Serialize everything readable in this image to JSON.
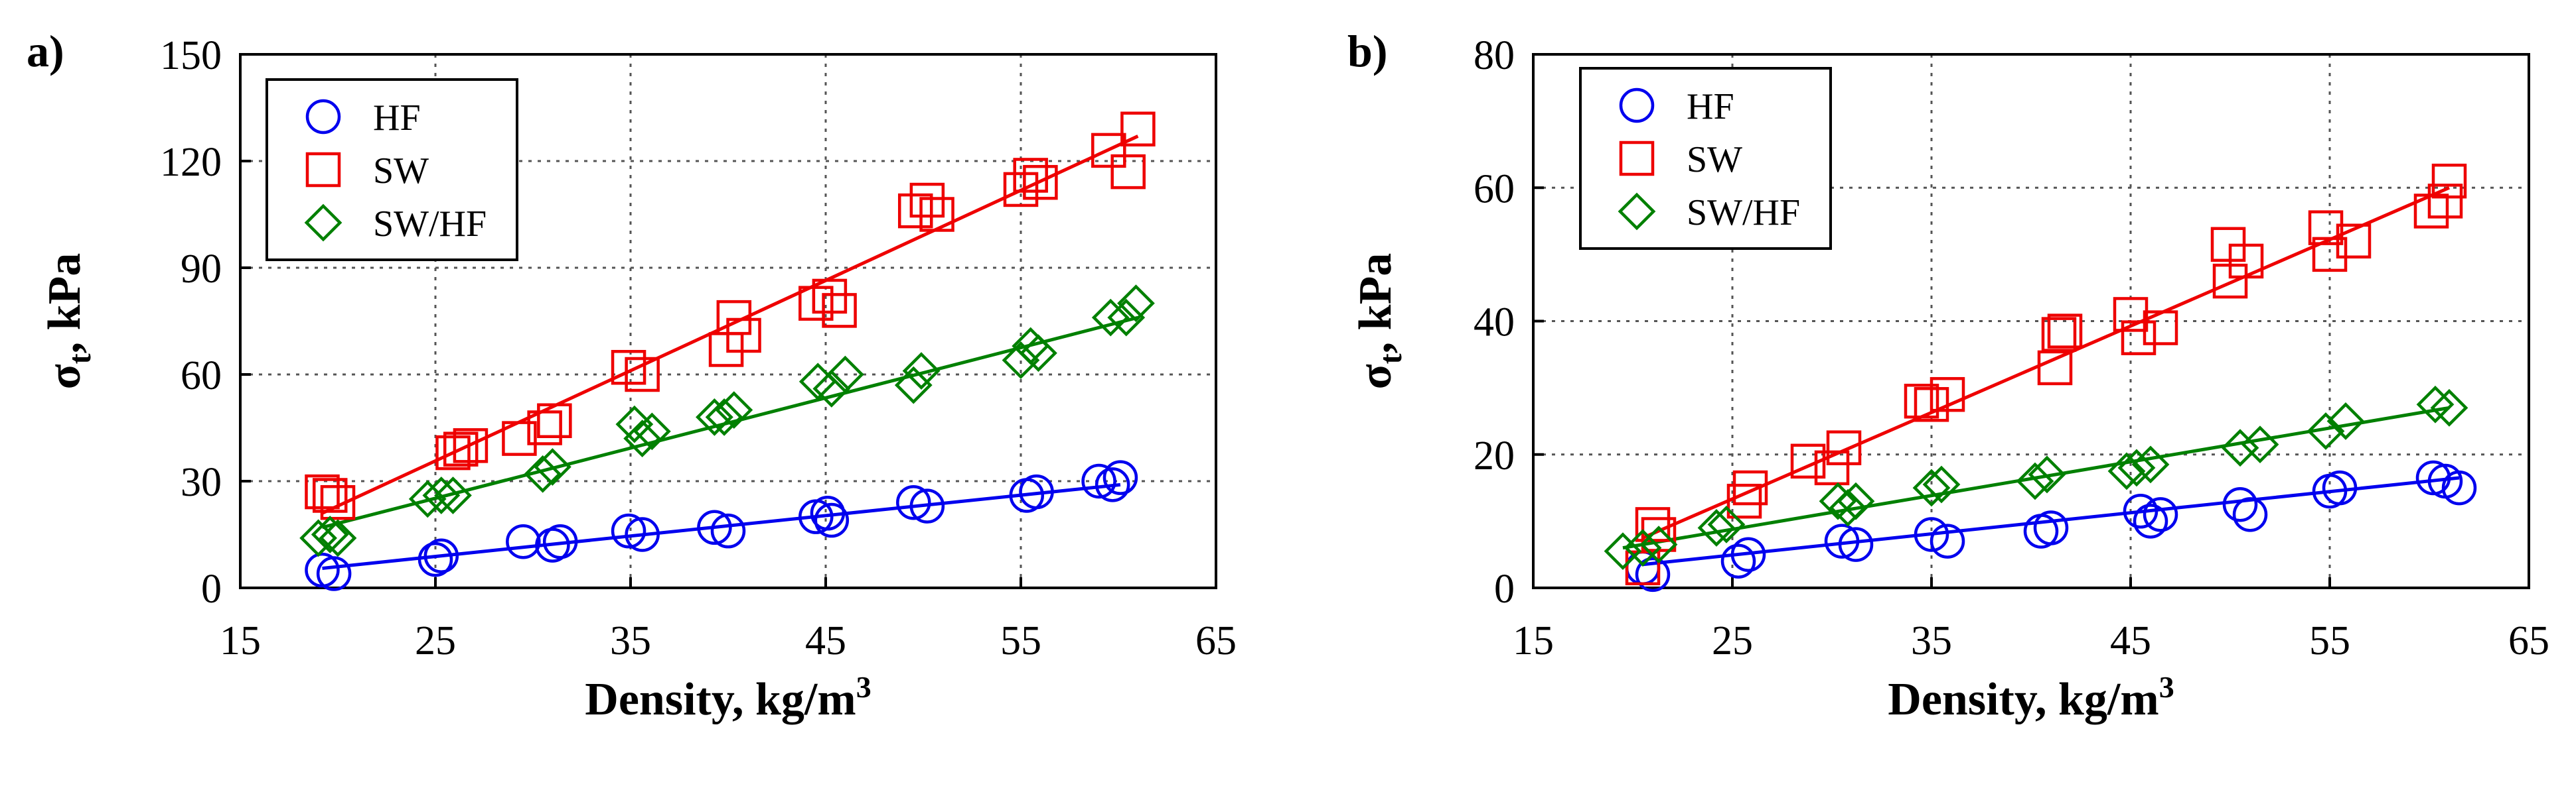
{
  "chart_data": [
    {
      "type": "scatter",
      "panel_label": "a)",
      "title": "",
      "xlabel": "Density, kg/m",
      "xlabel_superscript": "3",
      "ylabel": "σ",
      "ylabel_subscript": "t",
      "ylabel_suffix": ", kPa",
      "xlim": [
        15,
        65
      ],
      "ylim": [
        0,
        150
      ],
      "xticks": [
        15,
        25,
        35,
        45,
        55,
        65
      ],
      "yticks": [
        0,
        30,
        60,
        90,
        120,
        150
      ],
      "grid": true,
      "legend_position": "top-left",
      "series": [
        {
          "name": "HF",
          "marker": "circle",
          "color": "#0000ee",
          "x": [
            19.2,
            19.8,
            25.0,
            25.3,
            29.5,
            31.0,
            31.4,
            34.9,
            35.6,
            39.3,
            40.0,
            44.5,
            45.1,
            45.3,
            49.5,
            50.2,
            55.3,
            55.8,
            59.0,
            59.7,
            60.1
          ],
          "y": [
            5,
            4,
            8,
            9,
            13,
            12,
            13,
            16,
            15,
            17,
            16,
            20,
            21,
            19,
            24,
            23,
            26,
            27,
            30,
            29,
            31
          ],
          "fit": [
            [
              19.2,
              5.5
            ],
            [
              60.1,
              29
            ]
          ]
        },
        {
          "name": "SW",
          "marker": "square",
          "color": "#ee0000",
          "x": [
            19.2,
            19.6,
            20.0,
            25.9,
            26.3,
            26.8,
            29.3,
            30.6,
            31.1,
            34.9,
            35.6,
            39.9,
            40.3,
            40.8,
            44.5,
            45.2,
            45.7,
            49.6,
            50.2,
            50.7,
            55.0,
            55.5,
            56.0,
            59.5,
            60.5,
            61.0
          ],
          "y": [
            27,
            26,
            24,
            38,
            39,
            40,
            42,
            45,
            47,
            62,
            60,
            67,
            76,
            71,
            80,
            82,
            78,
            106,
            109,
            105,
            112,
            116,
            114,
            123,
            117,
            129
          ],
          "fit": [
            [
              19.2,
              21
            ],
            [
              61.0,
              127
            ]
          ]
        },
        {
          "name": "SW/HF",
          "marker": "diamond",
          "color": "#008000",
          "x": [
            19.0,
            19.6,
            20.0,
            24.6,
            25.3,
            25.9,
            30.5,
            31.0,
            35.2,
            35.6,
            36.1,
            39.3,
            39.8,
            40.3,
            44.6,
            45.3,
            46.0,
            49.5,
            49.9,
            55.0,
            55.5,
            55.9,
            59.6,
            60.4,
            60.9
          ],
          "y": [
            14,
            15,
            14,
            25,
            26,
            26,
            32,
            34,
            46,
            42,
            44,
            48,
            48,
            50,
            58,
            56,
            60,
            57,
            61,
            64,
            68,
            66,
            76,
            76,
            80
          ],
          "fit": [
            [
              19.2,
              17
            ],
            [
              61.0,
              76
            ]
          ]
        }
      ]
    },
    {
      "type": "scatter",
      "panel_label": "b)",
      "title": "",
      "xlabel": "Density, kg/m",
      "xlabel_superscript": "3",
      "ylabel": "σ",
      "ylabel_subscript": "t",
      "ylabel_suffix": ", kPa",
      "xlim": [
        15,
        65
      ],
      "ylim": [
        0,
        80
      ],
      "xticks": [
        15,
        25,
        35,
        45,
        55,
        65
      ],
      "yticks": [
        0,
        20,
        40,
        60,
        80
      ],
      "grid": true,
      "legend_position": "top-left",
      "series": [
        {
          "name": "HF",
          "marker": "circle",
          "color": "#0000ee",
          "x": [
            20.5,
            21.0,
            25.3,
            25.8,
            30.5,
            31.2,
            35.0,
            35.8,
            40.5,
            41.0,
            45.5,
            46.0,
            46.5,
            50.5,
            51.0,
            55.0,
            55.5,
            60.2,
            60.8,
            61.5
          ],
          "y": [
            3,
            2,
            4,
            5,
            7,
            6.5,
            8,
            7,
            8.5,
            9,
            11.5,
            10,
            11,
            12.5,
            11,
            14.5,
            15,
            16.5,
            16,
            15
          ],
          "fit": [
            [
              20.5,
              3.5
            ],
            [
              61.5,
              16.5
            ]
          ]
        },
        {
          "name": "SW",
          "marker": "square",
          "color": "#ee0000",
          "x": [
            20.5,
            21.0,
            21.3,
            25.6,
            25.9,
            28.8,
            30.0,
            30.6,
            34.5,
            35.0,
            35.8,
            41.2,
            41.4,
            41.7,
            45.0,
            45.4,
            46.5,
            49.9,
            50.0,
            50.8,
            54.8,
            55.0,
            56.2,
            60.1,
            60.8,
            61.0
          ],
          "y": [
            3,
            9.5,
            8,
            13,
            15,
            19,
            18,
            21,
            28,
            27.5,
            29,
            33,
            38,
            38.5,
            41,
            37.5,
            39,
            51.5,
            46,
            49,
            54,
            50,
            52,
            56.5,
            58,
            61
          ],
          "fit": [
            [
              20.5,
              7.5
            ],
            [
              61.0,
              60
            ]
          ]
        },
        {
          "name": "SW/HF",
          "marker": "diamond",
          "color": "#008000",
          "x": [
            19.5,
            20.5,
            21.3,
            24.2,
            24.7,
            30.3,
            30.8,
            31.2,
            35.0,
            35.5,
            40.2,
            40.8,
            44.8,
            45.3,
            46.0,
            50.5,
            51.5,
            54.8,
            55.8,
            60.3,
            61.0
          ],
          "y": [
            5.5,
            6,
            6.5,
            9,
            9.5,
            13,
            12,
            13,
            15,
            15.5,
            16,
            17,
            17.5,
            18,
            18.5,
            21,
            21.5,
            23.5,
            25,
            27.5,
            27
          ],
          "fit": [
            [
              19.5,
              6
            ],
            [
              61.0,
              27
            ]
          ]
        }
      ]
    }
  ]
}
